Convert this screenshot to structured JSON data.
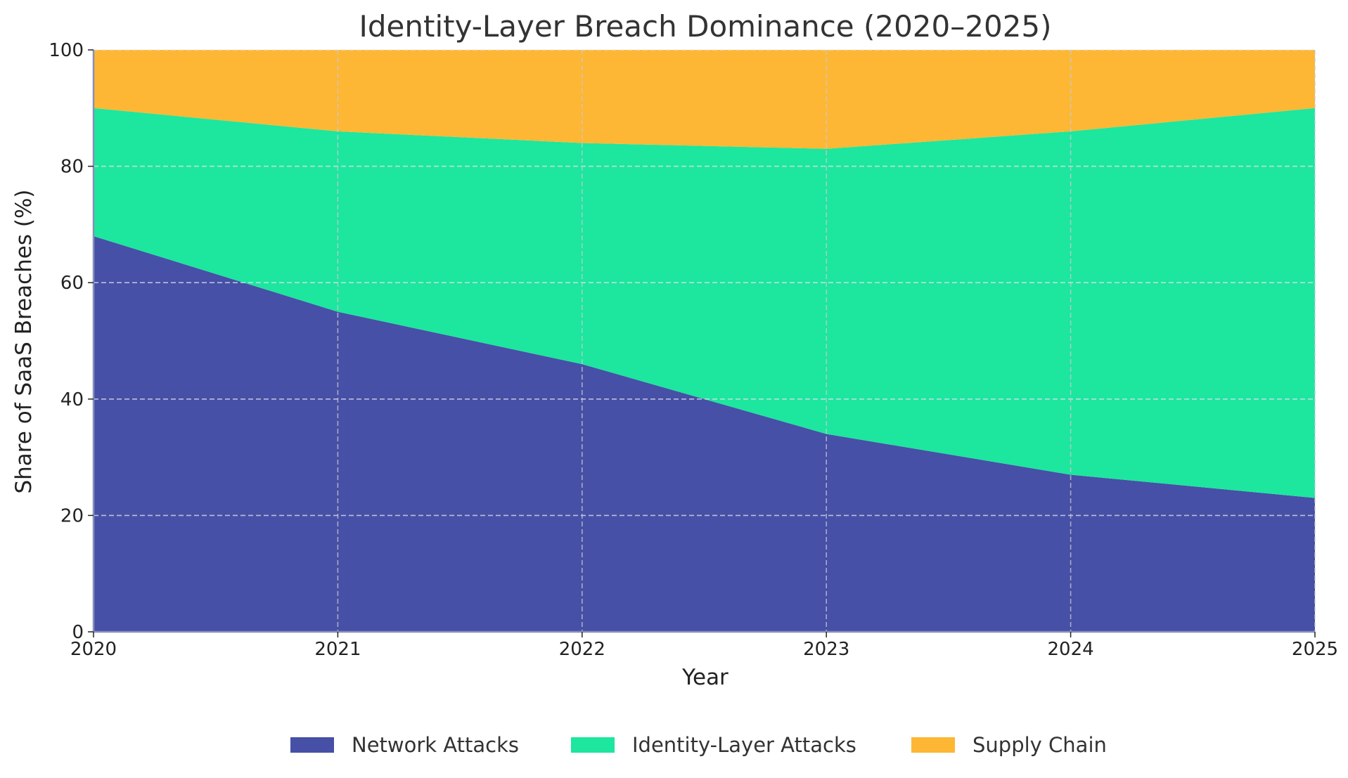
{
  "chart_data": {
    "type": "area",
    "stacked": true,
    "title": "Identity-Layer Breach Dominance (2020–2025)",
    "xlabel": "Year",
    "ylabel": "Share of SaaS Breaches (%)",
    "x": [
      2020,
      2021,
      2022,
      2023,
      2024,
      2025
    ],
    "x_tick_labels": [
      "2020",
      "2021",
      "2022",
      "2023",
      "2024",
      "2025"
    ],
    "xlim": [
      2020,
      2025
    ],
    "ylim": [
      0,
      100
    ],
    "y_ticks": [
      0,
      20,
      40,
      60,
      80,
      100
    ],
    "y_tick_labels": [
      "0",
      "20",
      "40",
      "60",
      "80",
      "100"
    ],
    "grid": true,
    "legend_position": "bottom-center",
    "series": [
      {
        "name": "Network Attacks",
        "values": [
          68,
          55,
          46,
          34,
          27,
          23
        ],
        "color": "#4650a6"
      },
      {
        "name": "Identity-Layer Attacks",
        "values": [
          22,
          31,
          38,
          49,
          59,
          67
        ],
        "color": "#1de69e"
      },
      {
        "name": "Supply Chain",
        "values": [
          10,
          14,
          16,
          17,
          14,
          10
        ],
        "color": "#fdb734"
      }
    ]
  }
}
